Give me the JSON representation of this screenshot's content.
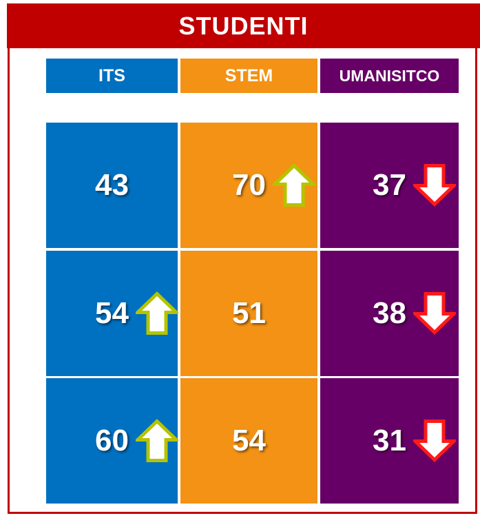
{
  "title": "STUDENTI",
  "table": {
    "columns": [
      "ITS",
      "STEM",
      "UMANISITCO"
    ],
    "rows": [
      [
        43,
        70,
        37
      ],
      [
        54,
        51,
        38
      ],
      [
        60,
        54,
        31
      ]
    ]
  }
}
